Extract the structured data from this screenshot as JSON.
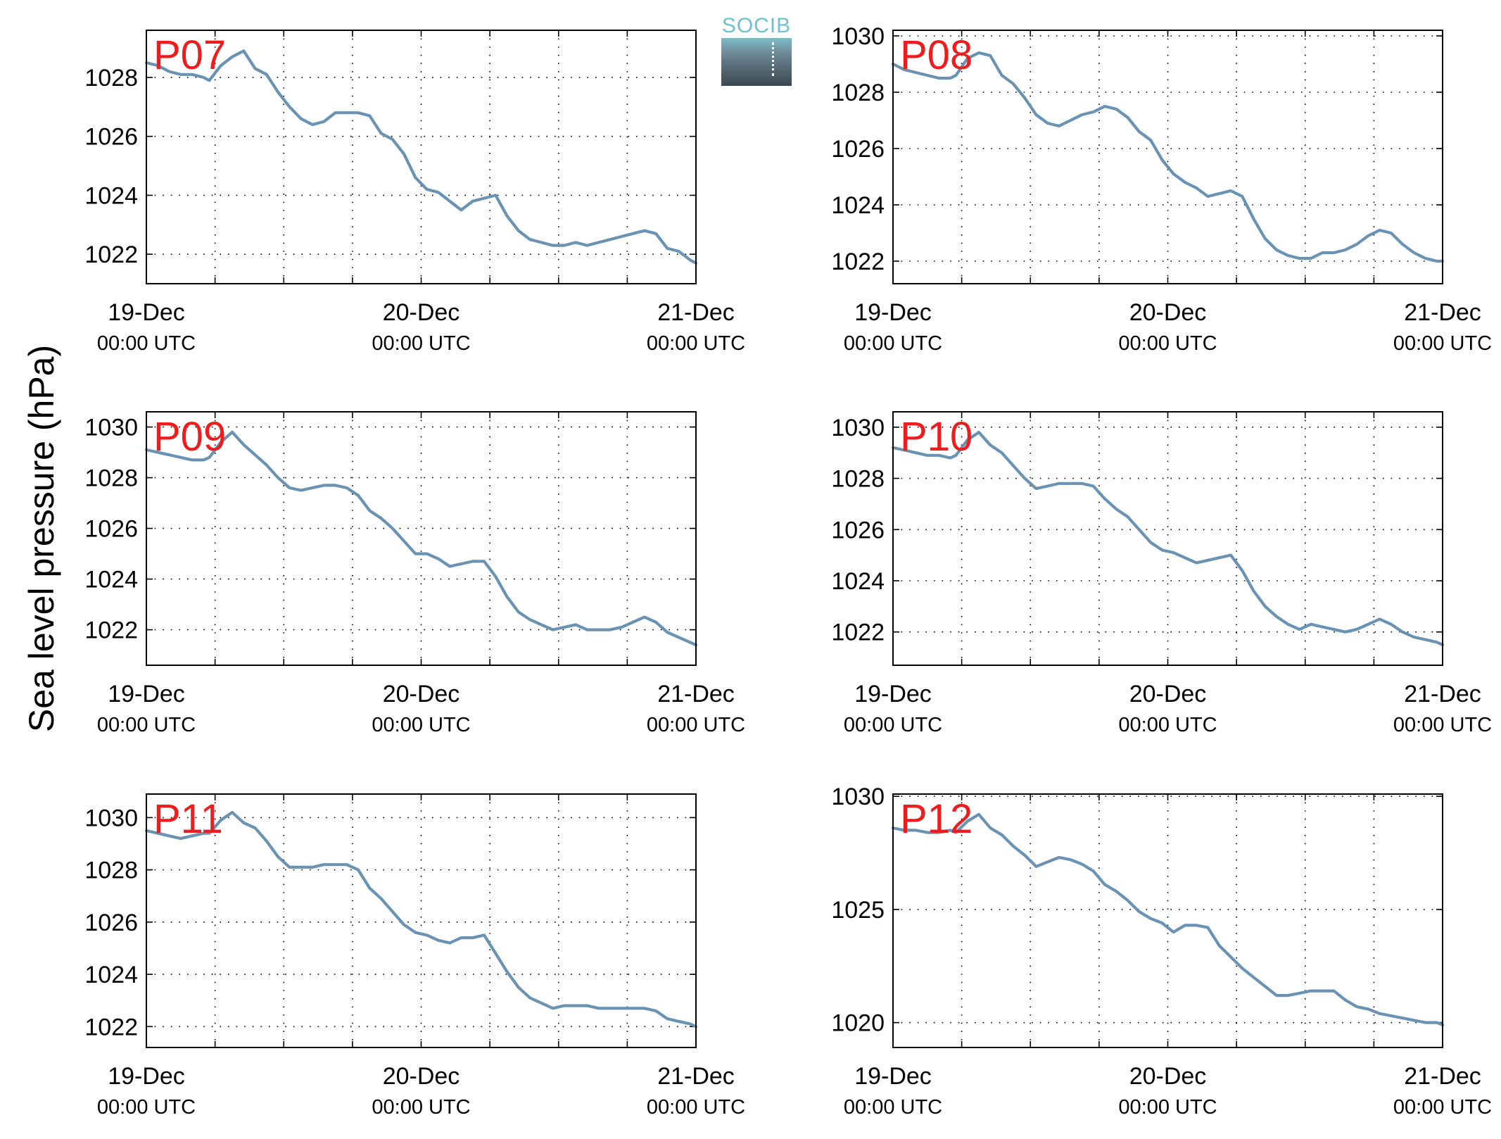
{
  "ylabel": "Sea level pressure (hPa)",
  "logo": {
    "text": "SOCIB",
    "color": "#6fc1cf"
  },
  "style": {
    "line_color": "#6a93b3",
    "station_label_color": "#ee1c1c",
    "axis_color": "#000000"
  },
  "x_ticks": [
    {
      "date": "19-Dec",
      "time": "00:00 UTC"
    },
    {
      "date": "20-Dec",
      "time": "00:00 UTC"
    },
    {
      "date": "21-Dec",
      "time": "00:00 UTC"
    }
  ],
  "chart_data": [
    {
      "type": "line",
      "label": "P07",
      "xlim": [
        0,
        48
      ],
      "ylim": [
        1021,
        1029.6
      ],
      "yticks": [
        1022,
        1024,
        1026,
        1028
      ],
      "grid": true,
      "x": [
        0,
        1,
        2,
        3,
        4,
        5,
        5.5,
        6.5,
        7.5,
        8.5,
        9.5,
        10.5,
        11.5,
        12.5,
        13.5,
        14.5,
        15.5,
        16.5,
        17.5,
        18.5,
        19.5,
        20.5,
        21.5,
        22.5,
        23.5,
        24.5,
        25.5,
        26.5,
        27.5,
        28.5,
        29.5,
        30.5,
        31.5,
        32.5,
        33.5,
        34.5,
        35.5,
        36.5,
        37.5,
        38.5,
        39.5,
        40.5,
        41.5,
        42.5,
        43.5,
        44.5,
        45.5,
        46.5,
        47.5,
        48
      ],
      "values": [
        1028.5,
        1028.4,
        1028.2,
        1028.1,
        1028.1,
        1028.0,
        1027.9,
        1028.4,
        1028.7,
        1028.9,
        1028.3,
        1028.1,
        1027.5,
        1027.0,
        1026.6,
        1026.4,
        1026.5,
        1026.8,
        1026.8,
        1026.8,
        1026.7,
        1026.1,
        1025.9,
        1025.4,
        1024.6,
        1024.2,
        1024.1,
        1023.8,
        1023.5,
        1023.8,
        1023.9,
        1024.0,
        1023.3,
        1022.8,
        1022.5,
        1022.4,
        1022.3,
        1022.3,
        1022.4,
        1022.3,
        1022.4,
        1022.5,
        1022.6,
        1022.7,
        1022.8,
        1022.7,
        1022.2,
        1022.1,
        1021.8,
        1021.7
      ]
    },
    {
      "type": "line",
      "label": "P08",
      "xlim": [
        0,
        48
      ],
      "ylim": [
        1021.2,
        1030.2
      ],
      "yticks": [
        1022,
        1024,
        1026,
        1028,
        1030
      ],
      "grid": true,
      "x": [
        0,
        1,
        2,
        3,
        4,
        5,
        5.5,
        6.5,
        7.5,
        8.5,
        9.5,
        10.5,
        11.5,
        12.5,
        13.5,
        14.5,
        15.5,
        16.5,
        17.5,
        18.5,
        19.5,
        20.5,
        21.5,
        22.5,
        23.5,
        24.5,
        25.5,
        26.5,
        27.5,
        28.5,
        29.5,
        30.5,
        31.5,
        32.5,
        33.5,
        34.5,
        35.5,
        36.5,
        37.5,
        38.5,
        39.5,
        40.5,
        41.5,
        42.5,
        43.5,
        44.5,
        45.5,
        46.5,
        47.5,
        48
      ],
      "values": [
        1029.0,
        1028.8,
        1028.7,
        1028.6,
        1028.5,
        1028.5,
        1028.6,
        1029.2,
        1029.4,
        1029.3,
        1028.6,
        1028.3,
        1027.8,
        1027.2,
        1026.9,
        1026.8,
        1027.0,
        1027.2,
        1027.3,
        1027.5,
        1027.4,
        1027.1,
        1026.6,
        1026.3,
        1025.6,
        1025.1,
        1024.8,
        1024.6,
        1024.3,
        1024.4,
        1024.5,
        1024.3,
        1023.5,
        1022.8,
        1022.4,
        1022.2,
        1022.1,
        1022.1,
        1022.3,
        1022.3,
        1022.4,
        1022.6,
        1022.9,
        1023.1,
        1023.0,
        1022.6,
        1022.3,
        1022.1,
        1022.0,
        1022.0
      ]
    },
    {
      "type": "line",
      "label": "P09",
      "xlim": [
        0,
        48
      ],
      "ylim": [
        1020.6,
        1030.6
      ],
      "yticks": [
        1022,
        1024,
        1026,
        1028,
        1030
      ],
      "grid": true,
      "x": [
        0,
        1,
        2,
        3,
        4,
        5,
        5.5,
        6.5,
        7.5,
        8.5,
        9.5,
        10.5,
        11.5,
        12.5,
        13.5,
        14.5,
        15.5,
        16.5,
        17.5,
        18.5,
        19.5,
        20.5,
        21.5,
        22.5,
        23.5,
        24.5,
        25.5,
        26.5,
        27.5,
        28.5,
        29.5,
        30.5,
        31.5,
        32.5,
        33.5,
        34.5,
        35.5,
        36.5,
        37.5,
        38.5,
        39.5,
        40.5,
        41.5,
        42.5,
        43.5,
        44.5,
        45.5,
        46.5,
        47.5,
        48
      ],
      "values": [
        1029.1,
        1029.0,
        1028.9,
        1028.8,
        1028.7,
        1028.7,
        1028.8,
        1029.4,
        1029.8,
        1029.3,
        1028.9,
        1028.5,
        1028.0,
        1027.6,
        1027.5,
        1027.6,
        1027.7,
        1027.7,
        1027.6,
        1027.3,
        1026.7,
        1026.4,
        1026.0,
        1025.5,
        1025.0,
        1025.0,
        1024.8,
        1024.5,
        1024.6,
        1024.7,
        1024.7,
        1024.1,
        1023.3,
        1022.7,
        1022.4,
        1022.2,
        1022.0,
        1022.1,
        1022.2,
        1022.0,
        1022.0,
        1022.0,
        1022.1,
        1022.3,
        1022.5,
        1022.3,
        1021.9,
        1021.7,
        1021.5,
        1021.4
      ]
    },
    {
      "type": "line",
      "label": "P10",
      "xlim": [
        0,
        48
      ],
      "ylim": [
        1020.7,
        1030.6
      ],
      "yticks": [
        1022,
        1024,
        1026,
        1028,
        1030
      ],
      "grid": true,
      "x": [
        0,
        1,
        2,
        3,
        4,
        5,
        5.5,
        6.5,
        7.5,
        8.5,
        9.5,
        10.5,
        11.5,
        12.5,
        13.5,
        14.5,
        15.5,
        16.5,
        17.5,
        18.5,
        19.5,
        20.5,
        21.5,
        22.5,
        23.5,
        24.5,
        25.5,
        26.5,
        27.5,
        28.5,
        29.5,
        30.5,
        31.5,
        32.5,
        33.5,
        34.5,
        35.5,
        36.5,
        37.5,
        38.5,
        39.5,
        40.5,
        41.5,
        42.5,
        43.5,
        44.5,
        45.5,
        46.5,
        47.5,
        48
      ],
      "values": [
        1029.2,
        1029.1,
        1029.0,
        1028.9,
        1028.9,
        1028.8,
        1028.9,
        1029.5,
        1029.8,
        1029.3,
        1029.0,
        1028.5,
        1028.0,
        1027.6,
        1027.7,
        1027.8,
        1027.8,
        1027.8,
        1027.7,
        1027.2,
        1026.8,
        1026.5,
        1026.0,
        1025.5,
        1025.2,
        1025.1,
        1024.9,
        1024.7,
        1024.8,
        1024.9,
        1025.0,
        1024.4,
        1023.6,
        1023.0,
        1022.6,
        1022.3,
        1022.1,
        1022.3,
        1022.2,
        1022.1,
        1022.0,
        1022.1,
        1022.3,
        1022.5,
        1022.3,
        1022.0,
        1021.8,
        1021.7,
        1021.6,
        1021.5
      ]
    },
    {
      "type": "line",
      "label": "P11",
      "xlim": [
        0,
        48
      ],
      "ylim": [
        1021.2,
        1030.9
      ],
      "yticks": [
        1022,
        1024,
        1026,
        1028,
        1030
      ],
      "grid": true,
      "x": [
        0,
        1,
        2,
        3,
        4,
        5,
        5.5,
        6.5,
        7.5,
        8.5,
        9.5,
        10.5,
        11.5,
        12.5,
        13.5,
        14.5,
        15.5,
        16.5,
        17.5,
        18.5,
        19.5,
        20.5,
        21.5,
        22.5,
        23.5,
        24.5,
        25.5,
        26.5,
        27.5,
        28.5,
        29.5,
        30.5,
        31.5,
        32.5,
        33.5,
        34.5,
        35.5,
        36.5,
        37.5,
        38.5,
        39.5,
        40.5,
        41.5,
        42.5,
        43.5,
        44.5,
        45.5,
        46.5,
        47.5,
        48
      ],
      "values": [
        1029.5,
        1029.4,
        1029.3,
        1029.2,
        1029.3,
        1029.4,
        1029.4,
        1029.9,
        1030.2,
        1029.8,
        1029.6,
        1029.1,
        1028.5,
        1028.1,
        1028.1,
        1028.1,
        1028.2,
        1028.2,
        1028.2,
        1028.0,
        1027.3,
        1026.9,
        1026.4,
        1025.9,
        1025.6,
        1025.5,
        1025.3,
        1025.2,
        1025.4,
        1025.4,
        1025.5,
        1024.8,
        1024.1,
        1023.5,
        1023.1,
        1022.9,
        1022.7,
        1022.8,
        1022.8,
        1022.8,
        1022.7,
        1022.7,
        1022.7,
        1022.7,
        1022.7,
        1022.6,
        1022.3,
        1022.2,
        1022.1,
        1022.0
      ]
    },
    {
      "type": "line",
      "label": "P12",
      "xlim": [
        0,
        48
      ],
      "ylim": [
        1018.9,
        1030.1
      ],
      "yticks": [
        1020,
        1025,
        1030
      ],
      "grid": true,
      "x": [
        0,
        1,
        2,
        3,
        4,
        5,
        5.5,
        6.5,
        7.5,
        8.5,
        9.5,
        10.5,
        11.5,
        12.5,
        13.5,
        14.5,
        15.5,
        16.5,
        17.5,
        18.5,
        19.5,
        20.5,
        21.5,
        22.5,
        23.5,
        24.5,
        25.5,
        26.5,
        27.5,
        28.5,
        29.5,
        30.5,
        31.5,
        32.5,
        33.5,
        34.5,
        35.5,
        36.5,
        37.5,
        38.5,
        39.5,
        40.5,
        41.5,
        42.5,
        43.5,
        44.5,
        45.5,
        46.5,
        47.5,
        48
      ],
      "values": [
        1028.6,
        1028.5,
        1028.5,
        1028.4,
        1028.4,
        1028.5,
        1028.4,
        1028.9,
        1029.2,
        1028.6,
        1028.3,
        1027.8,
        1027.4,
        1026.9,
        1027.1,
        1027.3,
        1027.2,
        1027.0,
        1026.7,
        1026.1,
        1025.8,
        1025.4,
        1024.9,
        1024.6,
        1024.4,
        1024.0,
        1024.3,
        1024.3,
        1024.2,
        1023.4,
        1022.9,
        1022.4,
        1022.0,
        1021.6,
        1021.2,
        1021.2,
        1021.3,
        1021.4,
        1021.4,
        1021.4,
        1021.0,
        1020.7,
        1020.6,
        1020.4,
        1020.3,
        1020.2,
        1020.1,
        1020.0,
        1020.0,
        1019.9
      ]
    }
  ]
}
